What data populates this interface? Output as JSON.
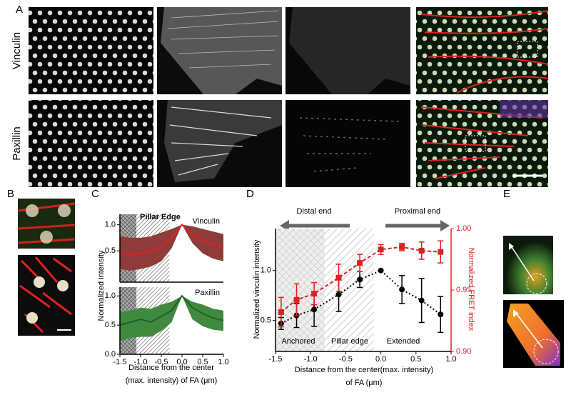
{
  "panel_labels": [
    "A",
    "B",
    "C",
    "D",
    "E"
  ],
  "row_labels": [
    "Vinculin",
    "Paxillin"
  ],
  "chart_data": [
    {
      "type": "line",
      "ylabel": "Normalized intensity",
      "annotations": [
        "Pillar Edge"
      ],
      "legend": "upper right",
      "xlim": [
        -1.5,
        1.0
      ],
      "ylim": [
        -0.1,
        1.2
      ],
      "yticks": [
        0.5,
        {
          "value": 1,
          "label": "1.0"
        }
      ],
      "regions": [
        {
          "from": -1.5,
          "to": -1.1,
          "fill": "cross-dark"
        },
        {
          "from": -1.1,
          "to": -0.3,
          "fill": "hatch-dark"
        }
      ],
      "x": [
        -1.5,
        -1.25,
        -1.0,
        -0.75,
        -0.5,
        -0.25,
        0.0,
        0.25,
        0.5,
        0.75,
        1.0
      ],
      "series": [
        {
          "name": "Vinculin",
          "color": "#e02020",
          "band_color": "#8e3b3b",
          "values": [
            0.45,
            0.43,
            0.45,
            0.5,
            0.6,
            0.75,
            1.0,
            0.82,
            0.7,
            0.62,
            0.55
          ],
          "upper": [
            0.78,
            0.75,
            0.75,
            0.78,
            0.85,
            0.92,
            1.0,
            0.97,
            0.92,
            0.87,
            0.82
          ],
          "lower": [
            0.15,
            0.12,
            0.15,
            0.2,
            0.3,
            0.55,
            1.0,
            0.65,
            0.45,
            0.35,
            0.3
          ]
        }
      ]
    },
    {
      "type": "line",
      "xlabel": [
        "Distance from the center",
        "(max. intensity) of FA (μm)"
      ],
      "legend": "upper right",
      "xlim": [
        -1.5,
        1.0
      ],
      "ylim": [
        0.0,
        1.15
      ],
      "xticks": [
        -1.5,
        {
          "value": -1,
          "label": "-1.0"
        },
        -0.5,
        {
          "value": 0,
          "label": "0.0"
        },
        0.5,
        {
          "value": 1,
          "label": "1.0"
        }
      ],
      "yticks": [
        {
          "value": 0,
          "label": "0.0"
        },
        0.5,
        {
          "value": 1,
          "label": "1.0"
        }
      ],
      "regions": [
        {
          "from": -1.5,
          "to": -1.1,
          "fill": "cross-dark"
        },
        {
          "from": -1.1,
          "to": -0.3,
          "fill": "hatch-dark"
        }
      ],
      "x": [
        -1.5,
        -1.25,
        -1.0,
        -0.75,
        -0.5,
        -0.25,
        0.0,
        0.25,
        0.5,
        0.75,
        1.0
      ],
      "series": [
        {
          "name": "Paxillin",
          "color": "#1f5f23",
          "band_color": "#3f8a3f",
          "values": [
            0.5,
            0.55,
            0.6,
            0.55,
            0.65,
            0.75,
            1.0,
            0.8,
            0.7,
            0.62,
            0.58
          ],
          "upper": [
            0.72,
            0.75,
            0.8,
            0.78,
            0.85,
            0.9,
            1.0,
            0.9,
            0.85,
            0.78,
            0.75
          ],
          "lower": [
            0.22,
            0.28,
            0.3,
            0.3,
            0.4,
            0.55,
            1.0,
            0.6,
            0.48,
            0.42,
            0.4
          ]
        }
      ]
    },
    {
      "type": "line",
      "ylabel": "Normalized vinculin intensity",
      "y2label": "Normalized  FRET index",
      "xlabel": [
        "Distance from the center(max. intensity)",
        "of FA (μm)"
      ],
      "annotations": [
        "Distal end",
        "Proximal end",
        "Anchored",
        "Pillar edge",
        "Extended"
      ],
      "xlim": [
        -1.5,
        1.0
      ],
      "ylim": [
        0.19,
        1.42
      ],
      "y2lim": [
        0.9,
        1.0
      ],
      "xticks": [
        -1.5,
        {
          "value": -1,
          "label": "-1.0"
        },
        -0.5,
        {
          "value": 0,
          "label": "0.0"
        },
        0.5,
        {
          "value": 1,
          "label": "1.0"
        }
      ],
      "yticks": [
        0.5,
        {
          "value": 1,
          "label": "1.0"
        }
      ],
      "y2ticks": [
        {
          "value": 0.9,
          "label": "0.90"
        },
        {
          "value": 0.95,
          "label": "0.95"
        },
        {
          "value": 1,
          "label": "1.00"
        }
      ],
      "regions": [
        {
          "from": -1.5,
          "to": -0.8,
          "fill": "cross-light"
        },
        {
          "from": -0.8,
          "to": -0.1,
          "fill": "hatch-light"
        }
      ],
      "x": [
        -1.42,
        -1.2,
        -0.95,
        -0.6,
        -0.3,
        0.0,
        0.3,
        0.58,
        0.85
      ],
      "series": [
        {
          "color": "#000000",
          "marker": "circle",
          "style": "dotted",
          "values": [
            0.47,
            0.55,
            0.61,
            0.76,
            0.91,
            1.0,
            0.81,
            0.7,
            0.56
          ],
          "errors": [
            0.06,
            0.12,
            0.17,
            0.17,
            0.08,
            0.0,
            0.14,
            0.22,
            0.18
          ]
        },
        {
          "color": "#e02020",
          "marker": "square",
          "style": "dashed",
          "axis": "y2",
          "values": [
            0.932,
            0.942,
            0.947,
            0.96,
            0.972,
            0.983,
            0.985,
            0.982,
            0.981
          ],
          "errors": [
            0.012,
            0.013,
            0.009,
            0.011,
            0.007,
            0.004,
            0.003,
            0.007,
            0.009
          ]
        }
      ]
    }
  ]
}
